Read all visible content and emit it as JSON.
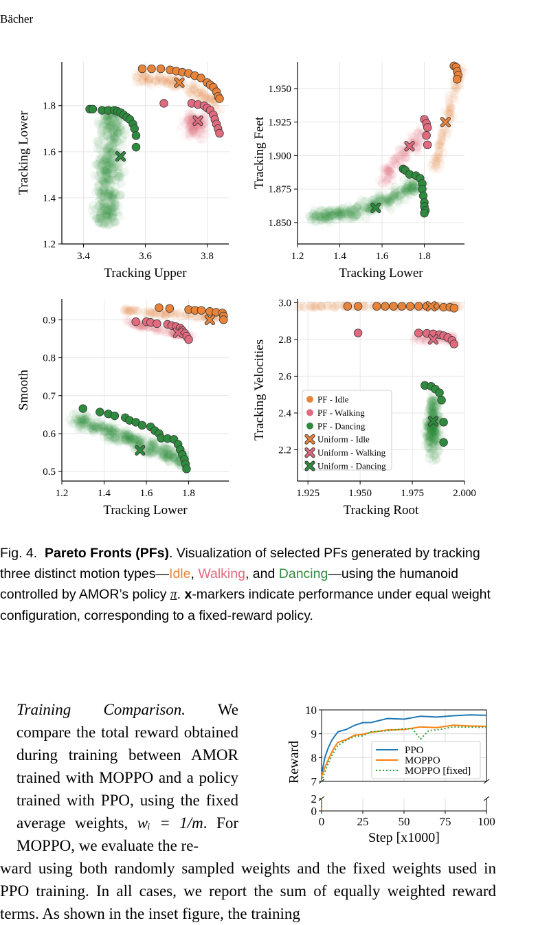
{
  "header": {
    "author": "Bächer"
  },
  "colors": {
    "idle": "#e8833a",
    "walking": "#e06b7f",
    "dancing": "#2e8b3e",
    "ppo": "#1f77b4",
    "moppo": "#ff7f0e",
    "moppo_fixed": "#2ca02c"
  },
  "chart_data": [
    {
      "type": "scatter",
      "xlabel": "Tracking Upper",
      "ylabel": "Tracking Lower",
      "xlim": [
        3.33,
        3.87
      ],
      "ylim": [
        1.2,
        1.99
      ],
      "xticks": [
        "3.4",
        "3.6",
        "3.8"
      ],
      "yticks": [
        "1.2",
        "1.4",
        "1.6",
        "1.8"
      ],
      "grid": true,
      "series": [
        {
          "name": "PF - Idle",
          "points": [
            [
              3.59,
              1.96
            ],
            [
              3.62,
              1.96
            ],
            [
              3.65,
              1.96
            ],
            [
              3.68,
              1.955
            ],
            [
              3.7,
              1.95
            ],
            [
              3.72,
              1.945
            ],
            [
              3.74,
              1.94
            ],
            [
              3.76,
              1.93
            ],
            [
              3.78,
              1.92
            ],
            [
              3.8,
              1.9
            ],
            [
              3.81,
              1.89
            ],
            [
              3.82,
              1.88
            ],
            [
              3.83,
              1.86
            ],
            [
              3.835,
              1.84
            ],
            [
              3.84,
              1.83
            ]
          ]
        },
        {
          "name": "PF - Walking",
          "points": [
            [
              3.66,
              1.81
            ],
            [
              3.75,
              1.81
            ],
            [
              3.77,
              1.805
            ],
            [
              3.79,
              1.8
            ],
            [
              3.8,
              1.79
            ],
            [
              3.81,
              1.78
            ],
            [
              3.82,
              1.76
            ],
            [
              3.825,
              1.74
            ],
            [
              3.83,
              1.72
            ],
            [
              3.835,
              1.7
            ],
            [
              3.84,
              1.68
            ]
          ]
        },
        {
          "name": "PF - Dancing",
          "points": [
            [
              3.42,
              1.785
            ],
            [
              3.43,
              1.785
            ],
            [
              3.46,
              1.78
            ],
            [
              3.48,
              1.78
            ],
            [
              3.5,
              1.78
            ],
            [
              3.51,
              1.775
            ],
            [
              3.52,
              1.77
            ],
            [
              3.53,
              1.76
            ],
            [
              3.54,
              1.75
            ],
            [
              3.55,
              1.74
            ],
            [
              3.56,
              1.72
            ],
            [
              3.565,
              1.7
            ],
            [
              3.57,
              1.67
            ],
            [
              3.57,
              1.62
            ]
          ]
        },
        {
          "name": "Uniform - Idle",
          "points": [
            [
              3.71,
              1.9
            ]
          ]
        },
        {
          "name": "Uniform - Walking",
          "points": [
            [
              3.77,
              1.735
            ]
          ]
        },
        {
          "name": "Uniform - Dancing",
          "points": [
            [
              3.52,
              1.58
            ]
          ]
        }
      ]
    },
    {
      "type": "scatter",
      "xlabel": "Tracking Lower",
      "ylabel": "Tracking Feet",
      "xlim": [
        1.2,
        1.99
      ],
      "ylim": [
        1.834,
        1.97
      ],
      "xticks": [
        "1.2",
        "1.4",
        "1.6",
        "1.8"
      ],
      "yticks": [
        "1.850",
        "1.875",
        "1.900",
        "1.925",
        "1.950"
      ],
      "grid": true,
      "series": [
        {
          "name": "PF - Idle",
          "points": [
            [
              1.94,
              1.967
            ],
            [
              1.95,
              1.966
            ],
            [
              1.955,
              1.963
            ],
            [
              1.96,
              1.96
            ],
            [
              1.955,
              1.957
            ]
          ]
        },
        {
          "name": "PF - Walking",
          "points": [
            [
              1.8,
              1.927
            ],
            [
              1.81,
              1.924
            ],
            [
              1.815,
              1.921
            ],
            [
              1.81,
              1.915
            ],
            [
              1.815,
              1.908
            ]
          ]
        },
        {
          "name": "PF - Dancing",
          "points": [
            [
              1.7,
              1.89
            ],
            [
              1.71,
              1.889
            ],
            [
              1.73,
              1.886
            ],
            [
              1.76,
              1.885
            ],
            [
              1.78,
              1.883
            ],
            [
              1.79,
              1.879
            ],
            [
              1.79,
              1.875
            ],
            [
              1.795,
              1.87
            ],
            [
              1.8,
              1.865
            ],
            [
              1.8,
              1.862
            ],
            [
              1.805,
              1.859
            ],
            [
              1.8,
              1.857
            ]
          ]
        },
        {
          "name": "Uniform - Idle",
          "points": [
            [
              1.9,
              1.925
            ]
          ]
        },
        {
          "name": "Uniform - Walking",
          "points": [
            [
              1.73,
              1.907
            ]
          ]
        },
        {
          "name": "Uniform - Dancing",
          "points": [
            [
              1.57,
              1.861
            ]
          ]
        }
      ]
    },
    {
      "type": "scatter",
      "xlabel": "Tracking Lower",
      "ylabel": "Smooth",
      "xlim": [
        1.2,
        1.99
      ],
      "ylim": [
        0.475,
        0.955
      ],
      "xticks": [
        "1.2",
        "1.4",
        "1.6",
        "1.8"
      ],
      "yticks": [
        "0.5",
        "0.6",
        "0.7",
        "0.8",
        "0.9"
      ],
      "grid": true,
      "series": [
        {
          "name": "PF - Idle",
          "points": [
            [
              1.66,
              0.932
            ],
            [
              1.71,
              0.93
            ],
            [
              1.8,
              0.927
            ],
            [
              1.83,
              0.925
            ],
            [
              1.86,
              0.925
            ],
            [
              1.9,
              0.922
            ],
            [
              1.93,
              0.92
            ],
            [
              1.96,
              0.918
            ],
            [
              1.965,
              0.91
            ],
            [
              1.965,
              0.9
            ]
          ]
        },
        {
          "name": "PF - Walking",
          "points": [
            [
              1.55,
              0.895
            ],
            [
              1.6,
              0.895
            ],
            [
              1.62,
              0.893
            ],
            [
              1.65,
              0.89
            ],
            [
              1.7,
              0.888
            ],
            [
              1.72,
              0.885
            ],
            [
              1.74,
              0.882
            ],
            [
              1.76,
              0.878
            ],
            [
              1.77,
              0.872
            ],
            [
              1.78,
              0.865
            ],
            [
              1.79,
              0.857
            ],
            [
              1.8,
              0.848
            ]
          ]
        },
        {
          "name": "PF - Dancing",
          "points": [
            [
              1.3,
              0.666
            ],
            [
              1.38,
              0.657
            ],
            [
              1.42,
              0.652
            ],
            [
              1.45,
              0.647
            ],
            [
              1.5,
              0.642
            ],
            [
              1.52,
              0.635
            ],
            [
              1.55,
              0.63
            ],
            [
              1.58,
              0.622
            ],
            [
              1.62,
              0.618
            ],
            [
              1.64,
              0.608
            ],
            [
              1.66,
              0.6
            ],
            [
              1.67,
              0.588
            ],
            [
              1.7,
              0.587
            ],
            [
              1.73,
              0.585
            ],
            [
              1.75,
              0.572
            ],
            [
              1.76,
              0.558
            ],
            [
              1.77,
              0.545
            ],
            [
              1.78,
              0.532
            ],
            [
              1.785,
              0.52
            ],
            [
              1.79,
              0.507
            ]
          ]
        },
        {
          "name": "Uniform - Idle",
          "points": [
            [
              1.9,
              0.9
            ]
          ]
        },
        {
          "name": "Uniform - Walking",
          "points": [
            [
              1.75,
              0.866
            ]
          ]
        },
        {
          "name": "Uniform - Dancing",
          "points": [
            [
              1.57,
              0.556
            ]
          ]
        }
      ]
    },
    {
      "type": "scatter",
      "xlabel": "Tracking Root",
      "ylabel": "Tracking Velocities",
      "xlim": [
        1.92,
        2.0
      ],
      "ylim": [
        2.03,
        3.02
      ],
      "xticks": [
        "1.925",
        "1.950",
        "1.975",
        "2.000"
      ],
      "yticks": [
        "2.2",
        "2.4",
        "2.6",
        "2.8",
        "3.0"
      ],
      "grid": true,
      "legend": "lower-left",
      "series": [
        {
          "name": "PF - Idle",
          "points": [
            [
              1.944,
              2.98
            ],
            [
              1.949,
              2.98
            ],
            [
              1.958,
              2.98
            ],
            [
              1.962,
              2.98
            ],
            [
              1.966,
              2.98
            ],
            [
              1.97,
              2.98
            ],
            [
              1.974,
              2.98
            ],
            [
              1.978,
              2.98
            ],
            [
              1.982,
              2.98
            ],
            [
              1.986,
              2.98
            ],
            [
              1.99,
              2.975
            ],
            [
              1.993,
              2.975
            ],
            [
              1.995,
              2.97
            ]
          ]
        },
        {
          "name": "PF - Walking",
          "points": [
            [
              1.949,
              2.835
            ],
            [
              1.978,
              2.835
            ],
            [
              1.982,
              2.833
            ],
            [
              1.985,
              2.83
            ],
            [
              1.988,
              2.826
            ],
            [
              1.99,
              2.82
            ],
            [
              1.992,
              2.81
            ],
            [
              1.994,
              2.795
            ],
            [
              1.995,
              2.775
            ]
          ]
        },
        {
          "name": "PF - Dancing",
          "points": [
            [
              1.981,
              2.55
            ],
            [
              1.984,
              2.545
            ],
            [
              1.986,
              2.53
            ],
            [
              1.988,
              2.51
            ],
            [
              1.989,
              2.47
            ],
            [
              1.99,
              2.35
            ],
            [
              1.99,
              2.24
            ]
          ]
        },
        {
          "name": "Uniform - Idle",
          "points": [
            [
              1.984,
              2.98
            ]
          ]
        },
        {
          "name": "Uniform - Walking",
          "points": [
            [
              1.985,
              2.8
            ]
          ]
        },
        {
          "name": "Uniform - Dancing",
          "points": [
            [
              1.985,
              2.355
            ]
          ]
        }
      ]
    },
    {
      "type": "line",
      "xlabel": "Step [x1000]",
      "ylabel": "Reward",
      "xlim": [
        0,
        100
      ],
      "ylim_top": [
        7,
        10
      ],
      "ylim_bottom": [
        0,
        2
      ],
      "xticks": [
        "0",
        "25",
        "50",
        "75",
        "100"
      ],
      "yticks_top": [
        "7",
        "8",
        "9",
        "10"
      ],
      "yticks_bottom": [
        "0",
        "2"
      ],
      "grid": true,
      "legend": "right",
      "series": [
        {
          "name": "PPO",
          "x": [
            0,
            2,
            4,
            6,
            8,
            10,
            15,
            20,
            25,
            30,
            40,
            50,
            60,
            70,
            80,
            90,
            100
          ],
          "y": [
            7.3,
            8.0,
            8.4,
            8.7,
            8.9,
            9.05,
            9.2,
            9.35,
            9.45,
            9.5,
            9.6,
            9.65,
            9.7,
            9.72,
            9.75,
            9.78,
            9.8
          ]
        },
        {
          "name": "MOPPO",
          "x": [
            0,
            2,
            4,
            6,
            8,
            10,
            15,
            20,
            25,
            30,
            40,
            50,
            60,
            70,
            80,
            90,
            100
          ],
          "y": [
            7.2,
            7.6,
            7.9,
            8.2,
            8.45,
            8.6,
            8.8,
            8.9,
            9.0,
            9.05,
            9.15,
            9.2,
            9.25,
            9.3,
            9.32,
            9.35,
            9.3
          ]
        },
        {
          "name": "MOPPO [fixed]",
          "x": [
            0,
            2,
            4,
            6,
            8,
            10,
            15,
            20,
            25,
            30,
            40,
            50,
            55,
            60,
            65,
            70,
            80,
            90,
            100
          ],
          "y": [
            7.0,
            7.4,
            7.75,
            8.05,
            8.3,
            8.5,
            8.75,
            8.85,
            8.95,
            9.05,
            9.15,
            9.2,
            9.2,
            8.8,
            9.1,
            9.2,
            9.25,
            9.3,
            9.25
          ]
        }
      ]
    }
  ],
  "legend_entries": [
    "PF - Idle",
    "PF - Walking",
    "PF - Dancing",
    "Uniform - Idle",
    "Uniform - Walking",
    "Uniform - Dancing"
  ],
  "caption": {
    "label": "Fig. 4.",
    "title": "Pareto Fronts (PFs)",
    "text_a": ". Visualization of selected PFs generated by tracking three distinct motion types—",
    "idle": "Idle",
    "sep1": ", ",
    "walking": "Walking",
    "sep2": ", and ",
    "dancing": "Dancing",
    "text_b": "—using the humanoid controlled by AMOR’s policy ",
    "policy": "π",
    "text_c": ". ",
    "xmark": "x",
    "text_d": "-markers indicate performance under equal weight configuration, corresponding to a fixed-reward policy."
  },
  "body": {
    "section": "Training Comparison.",
    "para_left": "We compare the total reward obtained during training between AMOR trained with MOPPO and a policy trained with PPO, using the fixed average weights, ",
    "weights": "wᵢ = 1/m",
    "para_left_end": ". For MOPPO, we evaluate the re-",
    "para_full": "ward using both randomly sampled weights and the fixed weights used in PPO training. In all cases, we report the sum of equally weighted reward terms. As shown in the inset figure, the training"
  }
}
